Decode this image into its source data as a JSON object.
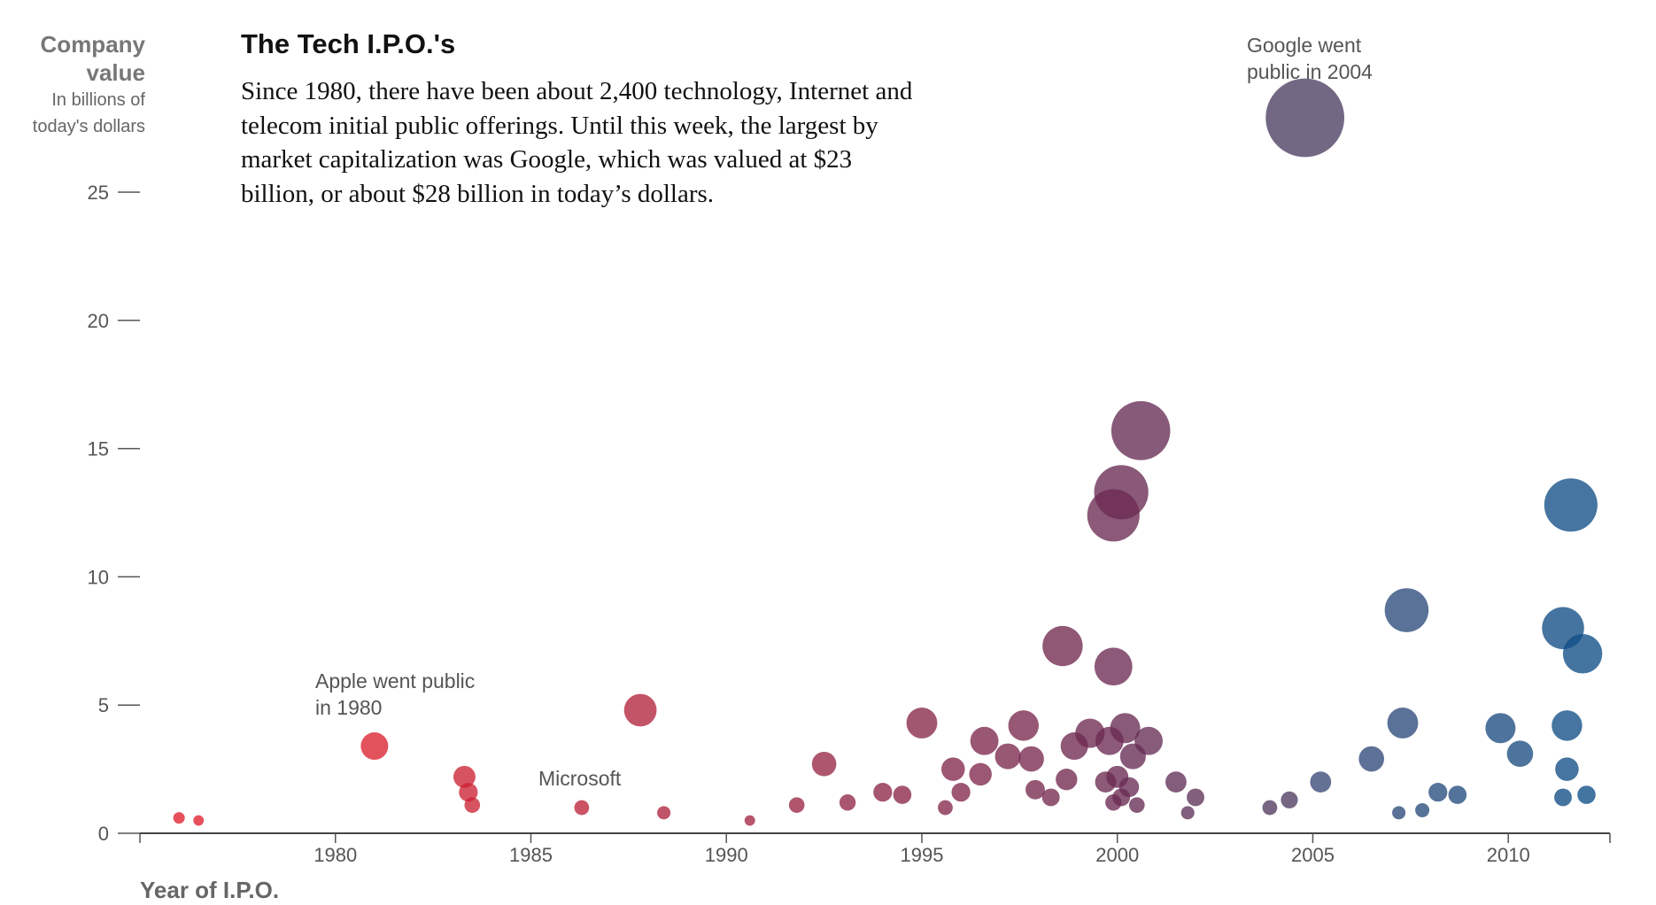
{
  "header": {
    "ylabel_title": "Company value",
    "ylabel_sub": "In billions of today's dollars",
    "title": "The Tech I.P.O.'s",
    "intro": "Since 1980, there have been about 2,400 technology, Internet and telecom initial public offerings. Until this week, the largest by market capitalization was Google, which was valued at $23 billion, or about $28 billion in today’s dollars.",
    "xlabel": "Year of I.P.O."
  },
  "annotations": {
    "apple": "Apple went public in 1980",
    "microsoft": "Microsoft",
    "google": "Google went public in 2004"
  },
  "chart_data": {
    "type": "scatter",
    "title": "The Tech I.P.O.'s",
    "xlabel": "Year of I.P.O.",
    "ylabel": "Company value (In billions of today's dollars)",
    "xlim": [
      1975,
      2012.6
    ],
    "ylim": [
      0,
      26
    ],
    "xticks": [
      "1980",
      "1985",
      "1990",
      "1995",
      "2000",
      "2005",
      "2010"
    ],
    "yticks": [
      "0",
      "5",
      "10",
      "15",
      "20",
      "25"
    ],
    "color_start": "#e0202e",
    "color_mid": "#6a2a52",
    "color_end": "#0e4e86",
    "points": [
      {
        "x": 1981.0,
        "y": 3.4
      },
      {
        "x": 1987.8,
        "y": 4.8
      },
      {
        "x": 1983.3,
        "y": 2.2
      },
      {
        "x": 1983.4,
        "y": 1.6
      },
      {
        "x": 1983.5,
        "y": 1.1
      },
      {
        "x": 1986.3,
        "y": 1.0
      },
      {
        "x": 1992.5,
        "y": 2.7
      },
      {
        "x": 1995.0,
        "y": 4.3
      },
      {
        "x": 1996.6,
        "y": 3.6
      },
      {
        "x": 1997.6,
        "y": 4.2
      },
      {
        "x": 1998.6,
        "y": 7.3
      },
      {
        "x": 1999.9,
        "y": 6.5
      },
      {
        "x": 2000.1,
        "y": 13.3
      },
      {
        "x": 1999.9,
        "y": 12.4
      },
      {
        "x": 2000.6,
        "y": 15.7
      },
      {
        "x": 2004.8,
        "y": 27.9
      },
      {
        "x": 2007.4,
        "y": 8.7
      },
      {
        "x": 2011.6,
        "y": 12.8
      },
      {
        "x": 2011.4,
        "y": 8.0
      },
      {
        "x": 2011.9,
        "y": 7.0
      },
      {
        "x": 2007.3,
        "y": 4.3
      },
      {
        "x": 2009.8,
        "y": 4.1
      },
      {
        "x": 2011.5,
        "y": 4.2
      },
      {
        "x": 2010.3,
        "y": 3.1
      },
      {
        "x": 2006.5,
        "y": 2.9
      },
      {
        "x": 2005.2,
        "y": 2.0
      },
      {
        "x": 2011.5,
        "y": 2.5
      },
      {
        "x": 1999.3,
        "y": 3.9
      },
      {
        "x": 1999.8,
        "y": 3.6
      },
      {
        "x": 2000.2,
        "y": 4.1
      },
      {
        "x": 2000.8,
        "y": 3.6
      },
      {
        "x": 2000.4,
        "y": 3.0
      },
      {
        "x": 1998.9,
        "y": 3.4
      },
      {
        "x": 1996.5,
        "y": 2.3
      },
      {
        "x": 1997.2,
        "y": 3.0
      },
      {
        "x": 1997.8,
        "y": 2.9
      },
      {
        "x": 1995.8,
        "y": 2.5
      },
      {
        "x": 1994.0,
        "y": 1.6
      },
      {
        "x": 1994.5,
        "y": 1.5
      },
      {
        "x": 2001.5,
        "y": 2.0
      },
      {
        "x": 2000.0,
        "y": 2.2
      },
      {
        "x": 1999.7,
        "y": 2.0
      },
      {
        "x": 2000.3,
        "y": 1.8
      },
      {
        "x": 2000.1,
        "y": 1.4
      },
      {
        "x": 1999.9,
        "y": 1.2
      },
      {
        "x": 2000.5,
        "y": 1.1
      },
      {
        "x": 1998.7,
        "y": 2.1
      },
      {
        "x": 1997.9,
        "y": 1.7
      },
      {
        "x": 1998.3,
        "y": 1.4
      },
      {
        "x": 1996.0,
        "y": 1.6
      },
      {
        "x": 1995.6,
        "y": 1.0
      },
      {
        "x": 2002.0,
        "y": 1.4
      },
      {
        "x": 2001.8,
        "y": 0.8
      },
      {
        "x": 2008.7,
        "y": 1.5
      },
      {
        "x": 2008.2,
        "y": 1.6
      },
      {
        "x": 2007.2,
        "y": 0.8
      },
      {
        "x": 2007.8,
        "y": 0.9
      },
      {
        "x": 2004.4,
        "y": 1.3
      },
      {
        "x": 2003.9,
        "y": 1.0
      },
      {
        "x": 2012.0,
        "y": 1.5
      },
      {
        "x": 2011.4,
        "y": 1.4
      },
      {
        "x": 1990.6,
        "y": 0.5
      },
      {
        "x": 1993.1,
        "y": 1.2
      },
      {
        "x": 1991.8,
        "y": 1.1
      },
      {
        "x": 1976.0,
        "y": 0.6
      },
      {
        "x": 1976.5,
        "y": 0.5
      },
      {
        "x": 1988.4,
        "y": 0.8
      }
    ]
  }
}
